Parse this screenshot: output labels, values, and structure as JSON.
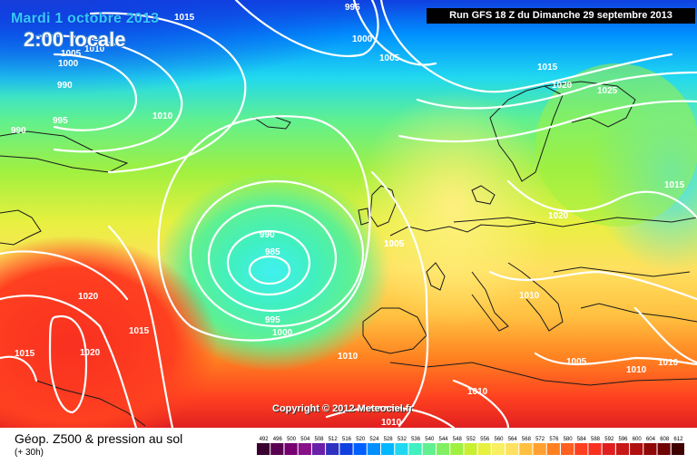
{
  "header": {
    "date": "Mardi 1 octobre 2013",
    "time": "2:00 locale",
    "run": "Run GFS 18 Z du Dimanche 29 septembre 2013"
  },
  "copyright": "Copyright © 2012 Meteociel.fr",
  "legend": {
    "title": "Géop. Z500 & pression au sol",
    "subtitle": "(+ 30h)",
    "scale": [
      "492",
      "496",
      "500",
      "504",
      "508",
      "512",
      "516",
      "520",
      "524",
      "528",
      "532",
      "536",
      "540",
      "544",
      "548",
      "552",
      "556",
      "560",
      "564",
      "568",
      "572",
      "576",
      "580",
      "584",
      "588",
      "592",
      "596",
      "600",
      "604",
      "608",
      "612"
    ],
    "colors": [
      "#3a0030",
      "#5a0050",
      "#760070",
      "#8a108a",
      "#6a20a8",
      "#3030c0",
      "#1040e0",
      "#0060ff",
      "#0090ff",
      "#00b8ff",
      "#20d8f0",
      "#40f0c0",
      "#60f090",
      "#80f060",
      "#a0f040",
      "#c8f030",
      "#e8f040",
      "#f8f060",
      "#ffe060",
      "#ffc040",
      "#ffa030",
      "#ff8020",
      "#ff6020",
      "#ff4020",
      "#f83020",
      "#e02020",
      "#c81818",
      "#b01010",
      "#900808",
      "#700404",
      "#400000"
    ],
    "icons": {
      "map": "weather-map"
    }
  },
  "pressure_labels": [
    {
      "text": "1015"
    },
    {
      "text": "995"
    },
    {
      "text": "1000"
    },
    {
      "text": "1005"
    },
    {
      "text": "1010"
    },
    {
      "text": "1005"
    },
    {
      "text": "1000"
    },
    {
      "text": "990"
    },
    {
      "text": "995"
    },
    {
      "text": "990"
    },
    {
      "text": "1010"
    },
    {
      "text": "1005"
    },
    {
      "text": "1015"
    },
    {
      "text": "1020"
    },
    {
      "text": "1025"
    },
    {
      "text": "1015"
    },
    {
      "text": "1020"
    },
    {
      "text": "990"
    },
    {
      "text": "985"
    },
    {
      "text": "1005"
    },
    {
      "text": "995"
    },
    {
      "text": "1000"
    },
    {
      "text": "1020"
    },
    {
      "text": "1015"
    },
    {
      "text": "1020"
    },
    {
      "text": "1015"
    },
    {
      "text": "1010"
    },
    {
      "text": "1010"
    },
    {
      "text": "1005"
    },
    {
      "text": "1010"
    },
    {
      "text": "1010"
    },
    {
      "text": "1010"
    },
    {
      "text": "1010"
    }
  ]
}
